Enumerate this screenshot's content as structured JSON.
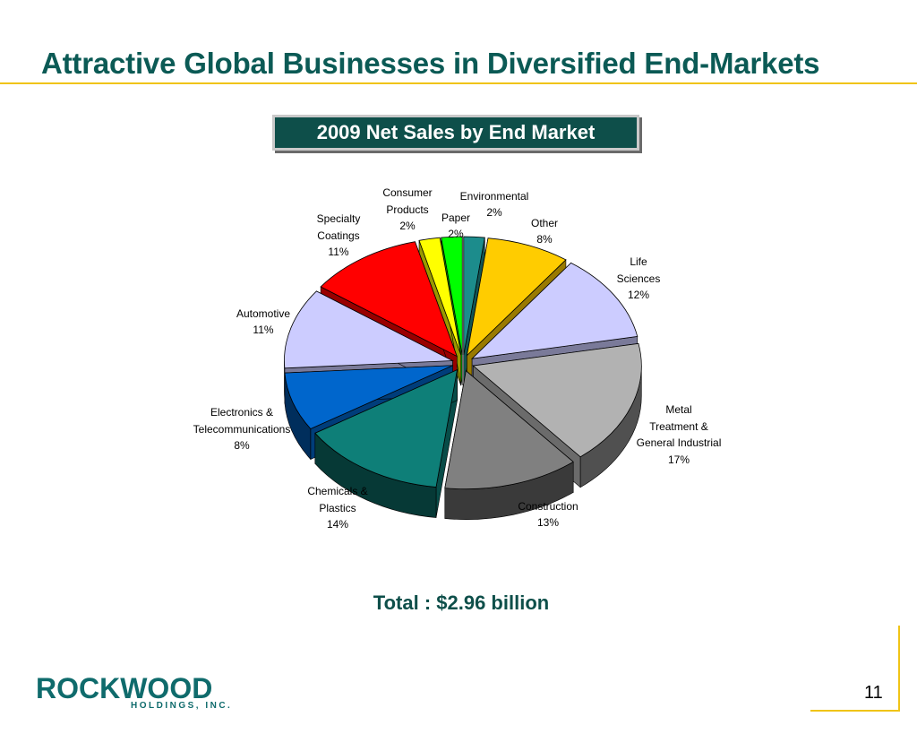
{
  "slide": {
    "title": "Attractive Global Businesses in Diversified End-Markets",
    "chart_title": "2009 Net Sales by End Market",
    "total": "Total : $2.96 billion",
    "page_number": "11"
  },
  "logo": {
    "wordmark": "ROCKWOOD",
    "subtext": "HOLDINGS, INC."
  },
  "chart_data": {
    "type": "pie",
    "title": "2009 Net Sales by End Market",
    "unit": "%",
    "slices": [
      {
        "label": "Environmental",
        "lines": [
          "Environmental",
          "2%"
        ],
        "value": 2,
        "color": "#1c8c8c"
      },
      {
        "label": "Other",
        "lines": [
          "Other",
          "8%"
        ],
        "value": 8,
        "color": "#ffcc00"
      },
      {
        "label": "Life Sciences",
        "lines": [
          "Life",
          "Sciences",
          "12%"
        ],
        "value": 12,
        "color": "#ccccff"
      },
      {
        "label": "Metal Treatment & General Industrial",
        "lines": [
          "Metal",
          "Treatment &",
          "General Industrial",
          "17%"
        ],
        "value": 17,
        "color": "#b2b2b2"
      },
      {
        "label": "Construction",
        "lines": [
          "Construction",
          "13%"
        ],
        "value": 13,
        "color": "#808080"
      },
      {
        "label": "Chemicals & Plastics",
        "lines": [
          "Chemicals &",
          "Plastics",
          "14%"
        ],
        "value": 14,
        "color": "#0e7f78"
      },
      {
        "label": "Electronics & Telecommunications",
        "lines": [
          "Electronics &",
          "Telecommunications",
          "8%"
        ],
        "value": 8,
        "color": "#0066cc"
      },
      {
        "label": "Automotive",
        "lines": [
          "Automotive",
          "11%"
        ],
        "value": 11,
        "color": "#ccccff"
      },
      {
        "label": "Specialty Coatings",
        "lines": [
          "Specialty",
          "Coatings",
          "11%"
        ],
        "value": 11,
        "color": "#ff0000"
      },
      {
        "label": "Consumer Products",
        "lines": [
          "Consumer",
          "Products",
          "2%"
        ],
        "value": 2,
        "color": "#ffff00"
      },
      {
        "label": "Paper",
        "lines": [
          "Paper",
          "2%"
        ],
        "value": 2,
        "color": "#00ff00"
      }
    ]
  },
  "colors": {
    "title": "#0b5a55",
    "accent_rule": "#f0c417",
    "chart_title_bg": "#0e4f4a"
  }
}
